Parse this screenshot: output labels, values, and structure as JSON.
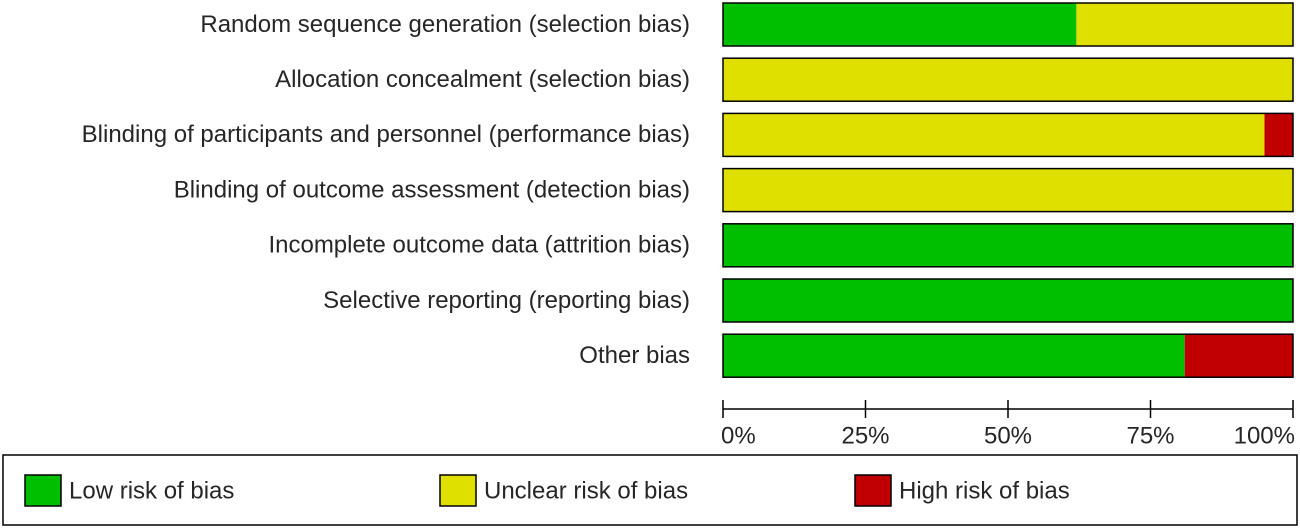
{
  "chart_data": {
    "type": "bar",
    "orientation": "horizontal",
    "stacked": true,
    "categories": [
      "Random sequence generation (selection bias)",
      "Allocation concealment (selection bias)",
      "Blinding of participants and personnel (performance bias)",
      "Blinding of outcome assessment (detection bias)",
      "Incomplete outcome data (attrition bias)",
      "Selective reporting (reporting bias)",
      "Other bias"
    ],
    "series": [
      {
        "name": "Low risk of bias",
        "color": "#00bf00",
        "values": [
          62,
          0,
          0,
          0,
          100,
          100,
          81
        ]
      },
      {
        "name": "Unclear risk of bias",
        "color": "#e0e000",
        "values": [
          38,
          100,
          95,
          100,
          0,
          0,
          0
        ]
      },
      {
        "name": "High risk of bias",
        "color": "#c00000",
        "values": [
          0,
          0,
          5,
          0,
          0,
          0,
          19
        ]
      }
    ],
    "xlim": [
      0,
      100
    ],
    "xticks": [
      {
        "value": 0,
        "label": "0%"
      },
      {
        "value": 25,
        "label": "25%"
      },
      {
        "value": 50,
        "label": "50%"
      },
      {
        "value": 75,
        "label": "75%"
      },
      {
        "value": 100,
        "label": "100%"
      }
    ],
    "legend": "bottom"
  }
}
